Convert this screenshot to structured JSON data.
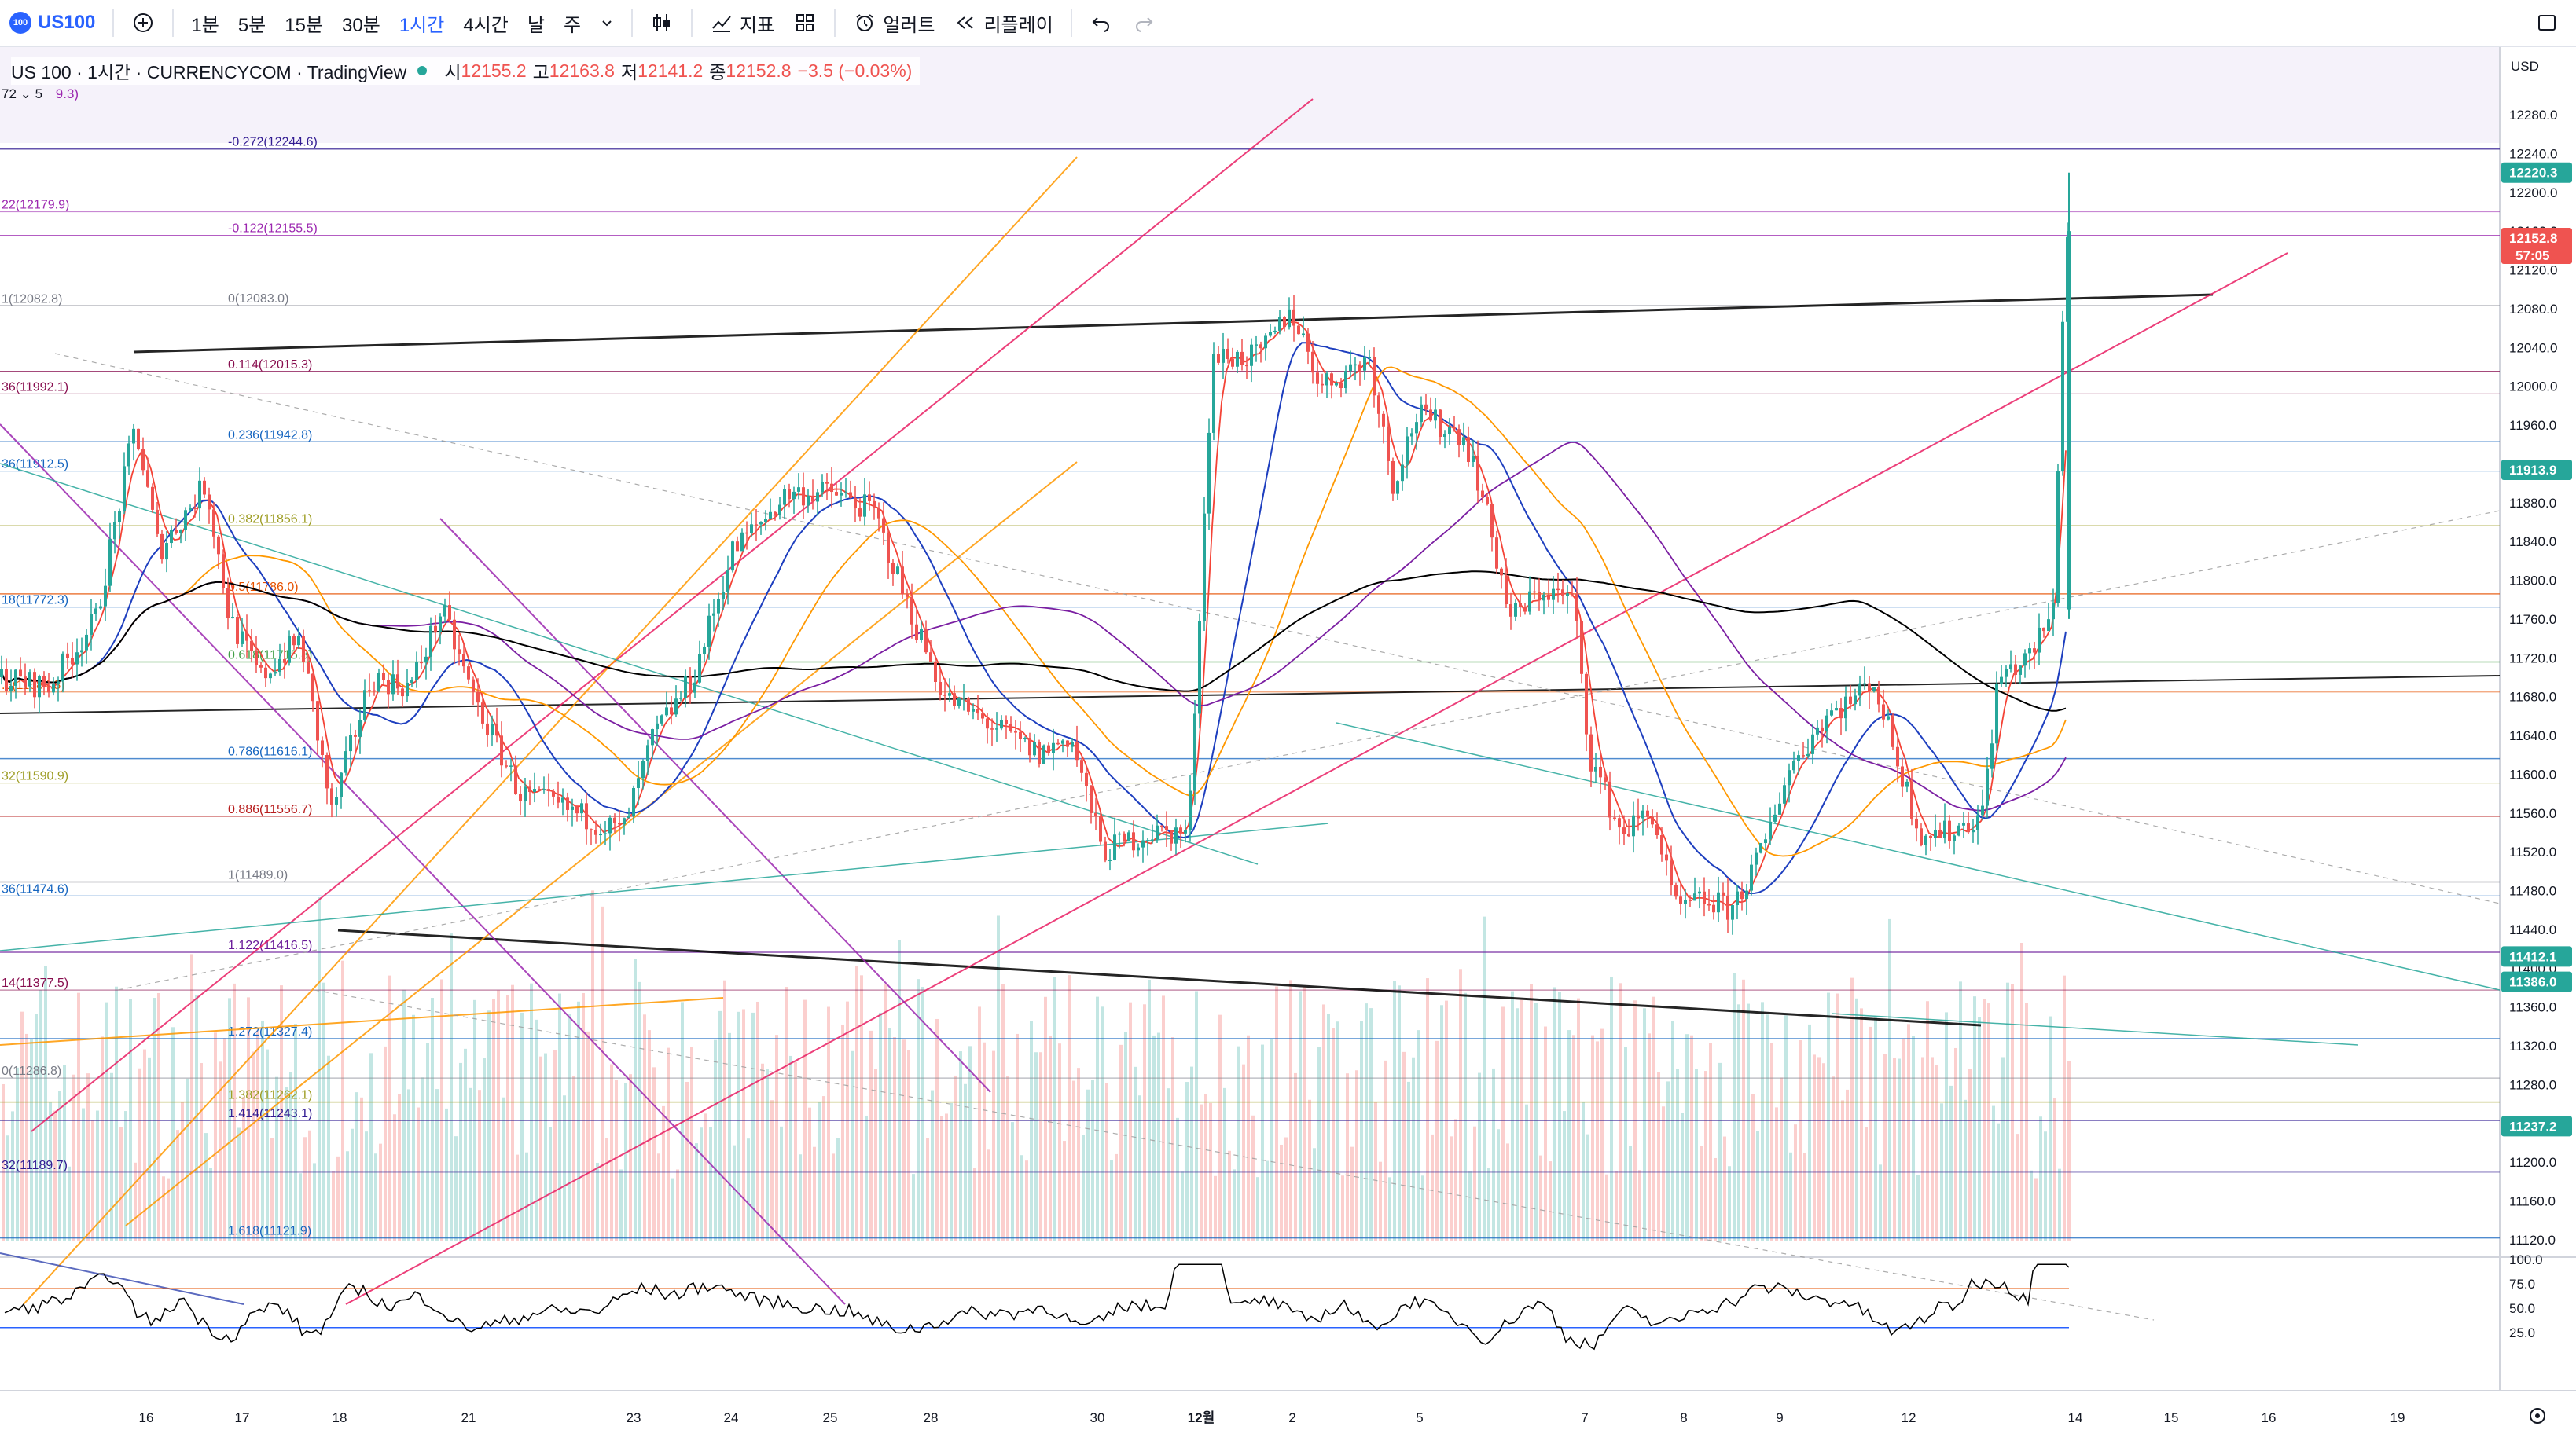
{
  "toolbar": {
    "symbol": "US100",
    "intervals": [
      "1분",
      "5분",
      "15분",
      "30분",
      "1시간",
      "4시간",
      "날",
      "주"
    ],
    "active_interval": "1시간",
    "indicators_label": "지표",
    "alert_label": "얼러트",
    "replay_label": "리플레이"
  },
  "legend": {
    "title": "US 100 · 1시간 · CURRENCYCOM · TradingView",
    "open_label": "시",
    "open": "12155.2",
    "high_label": "고",
    "high": "12163.8",
    "low_label": "저",
    "low": "12141.2",
    "close_label": "종",
    "close": "12152.8",
    "change": "−3.5 (−0.03%)",
    "collapsed_prefix": "72 ⌄ 5",
    "collapsed_value": "9.3)"
  },
  "price_axis": {
    "currency": "USD",
    "ticks": [
      12280,
      12240,
      12200,
      12160,
      12120,
      12080,
      12040,
      12000,
      11960,
      11920,
      11880,
      11840,
      11800,
      11760,
      11720,
      11680,
      11640,
      11600,
      11560,
      11520,
      11480,
      11440,
      11400,
      11360,
      11320,
      11280,
      11240,
      11200,
      11160,
      11120
    ],
    "badges": [
      {
        "text": "12220.3",
        "price": 12220.3,
        "color": "#26a69a"
      },
      {
        "text": "12152.8",
        "price": 12152.8,
        "color": "#ef5350",
        "sub": "57:05"
      },
      {
        "text": "11913.9",
        "price": 11913.9,
        "color": "#26a69a"
      },
      {
        "text": "11412.1",
        "price": 11412.1,
        "color": "#26a69a"
      },
      {
        "text": "11386.0",
        "price": 11386.0,
        "color": "#26a69a"
      },
      {
        "text": "11237.2",
        "price": 11237.2,
        "color": "#26a69a"
      }
    ]
  },
  "rsi_axis": {
    "ticks": [
      "100.0",
      "75.0",
      "50.0",
      "25.0"
    ]
  },
  "time_axis": {
    "labels": [
      "16",
      "17",
      "18",
      "21",
      "23",
      "24",
      "25",
      "28",
      "30",
      "12월",
      "2",
      "5",
      "7",
      "8",
      "9",
      "12",
      "14",
      "15",
      "16",
      "19"
    ],
    "bold": "12월"
  },
  "fib_right": [
    {
      "label": "-0.272(12244.6)",
      "price": 12244.6,
      "color": "#311b92"
    },
    {
      "label": "-0.122(12155.5)",
      "price": 12155.5,
      "color": "#9c27b0"
    },
    {
      "label": "0(12083.0)",
      "price": 12083.0,
      "color": "#787b86"
    },
    {
      "label": "0.114(12015.3)",
      "price": 12015.3,
      "color": "#880e4f"
    },
    {
      "label": "0.236(11942.8)",
      "price": 11942.8,
      "color": "#1565c0"
    },
    {
      "label": "0.382(11856.1)",
      "price": 11856.1,
      "color": "#9e9d24"
    },
    {
      "label": "0.5(11786.0)",
      "price": 11786.0,
      "color": "#e65100"
    },
    {
      "label": "0.618(11715.8)",
      "price": 11715.8,
      "color": "#43a047"
    },
    {
      "label": "0.786(11616.1)",
      "price": 11616.1,
      "color": "#1565c0"
    },
    {
      "label": "0.886(11556.7)",
      "price": 11556.7,
      "color": "#b71c1c"
    },
    {
      "label": "1(11489.0)",
      "price": 11489.0,
      "color": "#787b86"
    },
    {
      "label": "1.122(11416.5)",
      "price": 11416.5,
      "color": "#6a1b9a"
    },
    {
      "label": "1.272(11327.4)",
      "price": 11327.4,
      "color": "#1565c0"
    },
    {
      "label": "1.382(11262.1)",
      "price": 11262.1,
      "color": "#9e9d24"
    },
    {
      "label": "1.414(11243.1)",
      "price": 11243.1,
      "color": "#311b92"
    },
    {
      "label": "1.618(11121.9)",
      "price": 11121.9,
      "color": "#1565c0"
    }
  ],
  "fib_left": [
    {
      "label": "22(12179.9)",
      "price": 12179.9,
      "color": "#9c27b0"
    },
    {
      "label": "1(12082.8)",
      "price": 12082.8,
      "color": "#787b86"
    },
    {
      "label": "36(11992.1)",
      "price": 11992.1,
      "color": "#880e4f"
    },
    {
      "label": "36(11912.5)",
      "price": 11912.5,
      "color": "#1565c0"
    },
    {
      "label": "18(11772.3)",
      "price": 11772.3,
      "color": "#1565c0"
    },
    {
      "label": ".5(11684.8)",
      "price": 11684.8,
      "color": "#e65100"
    },
    {
      "label": "32(11590.9)",
      "price": 11590.9,
      "color": "#9e9d24"
    },
    {
      "label": "36(11474.6)",
      "price": 11474.6,
      "color": "#1565c0"
    },
    {
      "label": "14(11377.5)",
      "price": 11377.5,
      "color": "#880e4f"
    },
    {
      "label": "0(11286.8)",
      "price": 11286.8,
      "color": "#787b86"
    },
    {
      "label": "32(11189.7)",
      "price": 11189.7,
      "color": "#311b92"
    }
  ],
  "chart_data": {
    "type": "candlestick",
    "symbol": "US100",
    "interval": "1시간",
    "ylim": [
      11100,
      12320
    ],
    "last": 12152.8,
    "price_path": [
      {
        "t": 0,
        "p": 11700
      },
      {
        "t": 60,
        "p": 11690
      },
      {
        "t": 120,
        "p": 11760
      },
      {
        "t": 170,
        "p": 11960
      },
      {
        "t": 200,
        "p": 11830
      },
      {
        "t": 260,
        "p": 11900
      },
      {
        "t": 290,
        "p": 11760
      },
      {
        "t": 330,
        "p": 11700
      },
      {
        "t": 380,
        "p": 11740
      },
      {
        "t": 420,
        "p": 11560
      },
      {
        "t": 470,
        "p": 11700
      },
      {
        "t": 520,
        "p": 11690
      },
      {
        "t": 560,
        "p": 11770
      },
      {
        "t": 600,
        "p": 11680
      },
      {
        "t": 660,
        "p": 11580
      },
      {
        "t": 730,
        "p": 11560
      },
      {
        "t": 790,
        "p": 11540
      },
      {
        "t": 830,
        "p": 11640
      },
      {
        "t": 880,
        "p": 11700
      },
      {
        "t": 930,
        "p": 11830
      },
      {
        "t": 1000,
        "p": 11890
      },
      {
        "t": 1060,
        "p": 11890
      },
      {
        "t": 1110,
        "p": 11870
      },
      {
        "t": 1150,
        "p": 11780
      },
      {
        "t": 1200,
        "p": 11680
      },
      {
        "t": 1260,
        "p": 11650
      },
      {
        "t": 1320,
        "p": 11620
      },
      {
        "t": 1360,
        "p": 11640
      },
      {
        "t": 1400,
        "p": 11520
      },
      {
        "t": 1460,
        "p": 11540
      },
      {
        "t": 1510,
        "p": 11540
      },
      {
        "t": 1540,
        "p": 12030
      },
      {
        "t": 1600,
        "p": 12030
      },
      {
        "t": 1640,
        "p": 12080
      },
      {
        "t": 1680,
        "p": 12000
      },
      {
        "t": 1740,
        "p": 12030
      },
      {
        "t": 1770,
        "p": 11900
      },
      {
        "t": 1800,
        "p": 11970
      },
      {
        "t": 1860,
        "p": 11950
      },
      {
        "t": 1880,
        "p": 11900
      },
      {
        "t": 1920,
        "p": 11760
      },
      {
        "t": 1960,
        "p": 11790
      },
      {
        "t": 2000,
        "p": 11780
      },
      {
        "t": 2020,
        "p": 11620
      },
      {
        "t": 2060,
        "p": 11540
      },
      {
        "t": 2100,
        "p": 11560
      },
      {
        "t": 2130,
        "p": 11460
      },
      {
        "t": 2170,
        "p": 11470
      },
      {
        "t": 2200,
        "p": 11460
      },
      {
        "t": 2240,
        "p": 11520
      },
      {
        "t": 2270,
        "p": 11600
      },
      {
        "t": 2320,
        "p": 11660
      },
      {
        "t": 2360,
        "p": 11680
      },
      {
        "t": 2380,
        "p": 11700
      },
      {
        "t": 2410,
        "p": 11620
      },
      {
        "t": 2440,
        "p": 11540
      },
      {
        "t": 2480,
        "p": 11540
      },
      {
        "t": 2520,
        "p": 11560
      },
      {
        "t": 2540,
        "p": 11700
      },
      {
        "t": 2580,
        "p": 11720
      },
      {
        "t": 2610,
        "p": 11770
      },
      {
        "t": 2625,
        "p": 12150
      },
      {
        "t": 2632,
        "p": 12152.8
      }
    ],
    "rsi_range": [
      0,
      100
    ],
    "rsi_levels": [
      70,
      30
    ]
  }
}
